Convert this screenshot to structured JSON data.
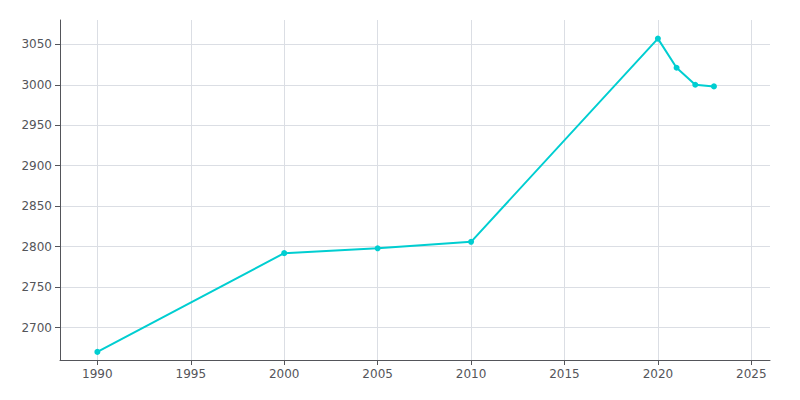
{
  "chart_data": {
    "type": "line",
    "x": [
      1990,
      2000,
      2005,
      2010,
      2020,
      2021,
      2022,
      2023
    ],
    "values": [
      2670,
      2792,
      2798,
      2806,
      3057,
      3021,
      3000,
      2998
    ],
    "color": "#00CED1",
    "marker": "circle",
    "xlim": [
      1988,
      2026
    ],
    "ylim": [
      2660,
      3080
    ],
    "xticks": [
      1990,
      1995,
      2000,
      2005,
      2010,
      2015,
      2020,
      2025
    ],
    "yticks": [
      2700,
      2750,
      2800,
      2850,
      2900,
      2950,
      3000,
      3050
    ],
    "grid": true
  }
}
